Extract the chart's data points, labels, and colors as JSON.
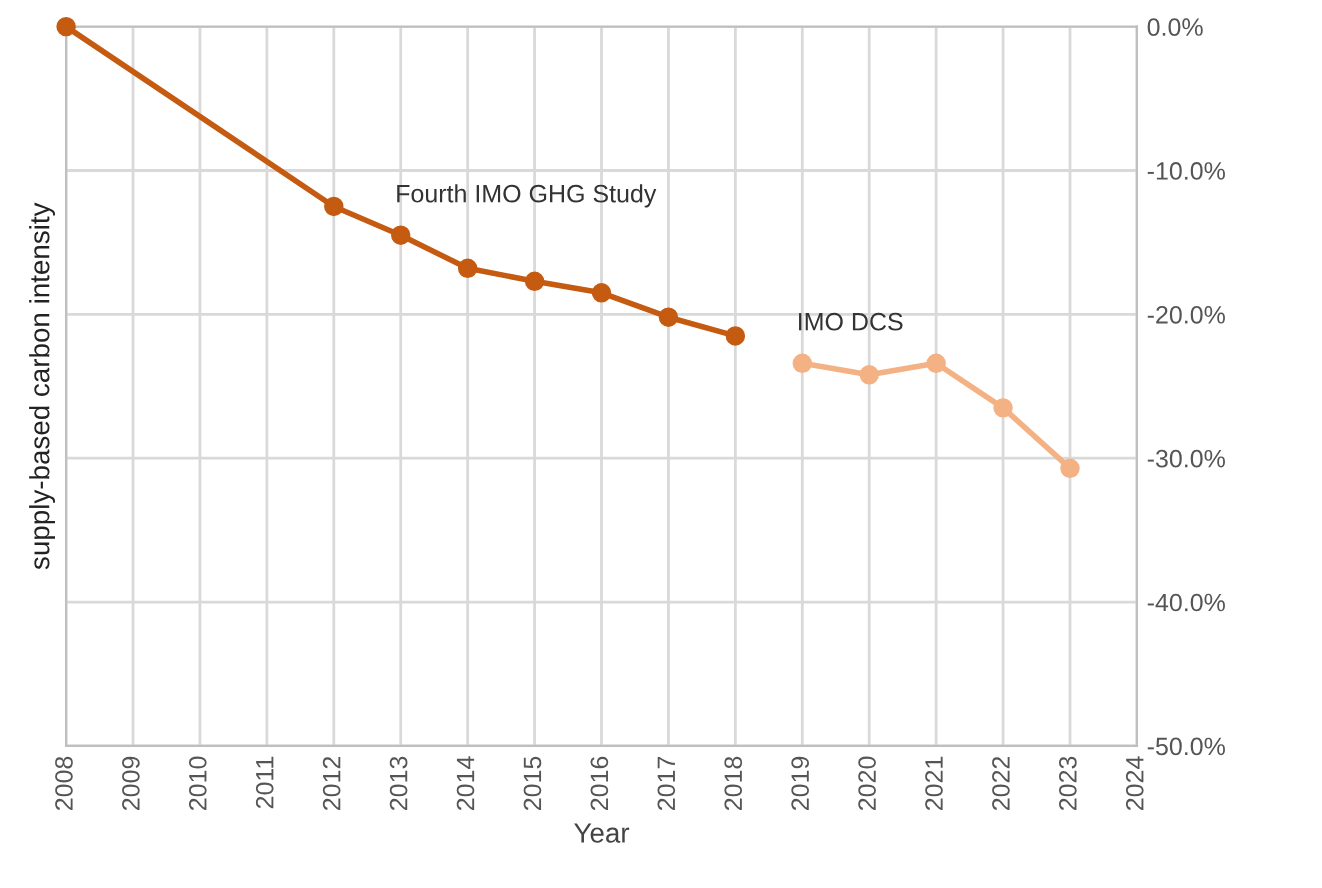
{
  "chart_data": {
    "type": "line",
    "xlabel": "Year",
    "ylabel": "supply-based carbon intensity",
    "series": [
      {
        "color": "#c55a11",
        "x": [
          2008,
          2012,
          2013,
          2014,
          2015,
          2016,
          2017,
          2018
        ],
        "values": [
          0,
          -12.5,
          -14.5,
          -16.8,
          -17.7,
          -18.5,
          -20.2,
          -21.5
        ]
      },
      {
        "color": "#f4b183",
        "x": [
          2019,
          2020,
          2021,
          2022,
          2023
        ],
        "values": [
          -23.4,
          -24.2,
          -23.4,
          -26.5,
          -30.7
        ]
      }
    ],
    "annotations": [
      "Fourth IMO GHG Study",
      "IMO DCS"
    ],
    "xlim": [
      2008,
      2024
    ],
    "xticks": [
      2008,
      2009,
      2010,
      2011,
      2012,
      2013,
      2014,
      2015,
      2016,
      2017,
      2018,
      2019,
      2020,
      2021,
      2022,
      2023,
      2024
    ],
    "ylim": [
      -50,
      0
    ],
    "yticks": [
      {
        "value": 0,
        "label": "0.0%"
      },
      {
        "value": -10,
        "label": "-10.0%"
      },
      {
        "value": -20,
        "label": "-20.0%"
      },
      {
        "value": -30,
        "label": "-30.0%"
      },
      {
        "value": -40,
        "label": "-40.0%"
      },
      {
        "value": -50,
        "label": "-50.0%"
      }
    ],
    "grid": true,
    "marker": "circle",
    "line_style": "solid"
  }
}
